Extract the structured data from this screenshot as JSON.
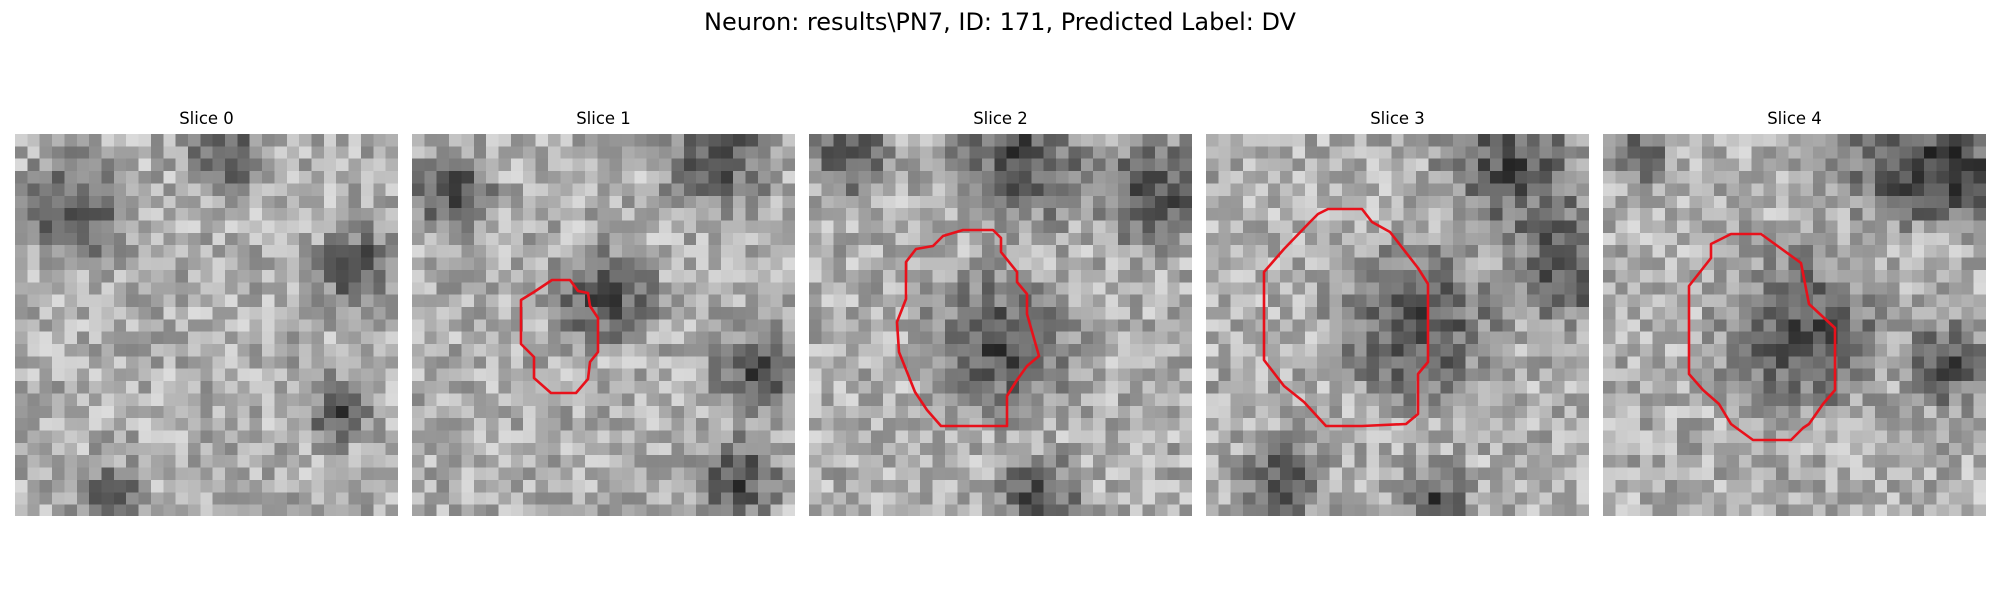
{
  "figure": {
    "title": "Neuron: results\\PN7, ID: 171, Predicted Label: DV"
  },
  "slices": [
    {
      "label": "Slice 0",
      "has_contour": false
    },
    {
      "label": "Slice 1",
      "has_contour": true
    },
    {
      "label": "Slice 2",
      "has_contour": true
    },
    {
      "label": "Slice 3",
      "has_contour": true
    },
    {
      "label": "Slice 4",
      "has_contour": true
    }
  ],
  "colors": {
    "contour": "#e8111b"
  }
}
